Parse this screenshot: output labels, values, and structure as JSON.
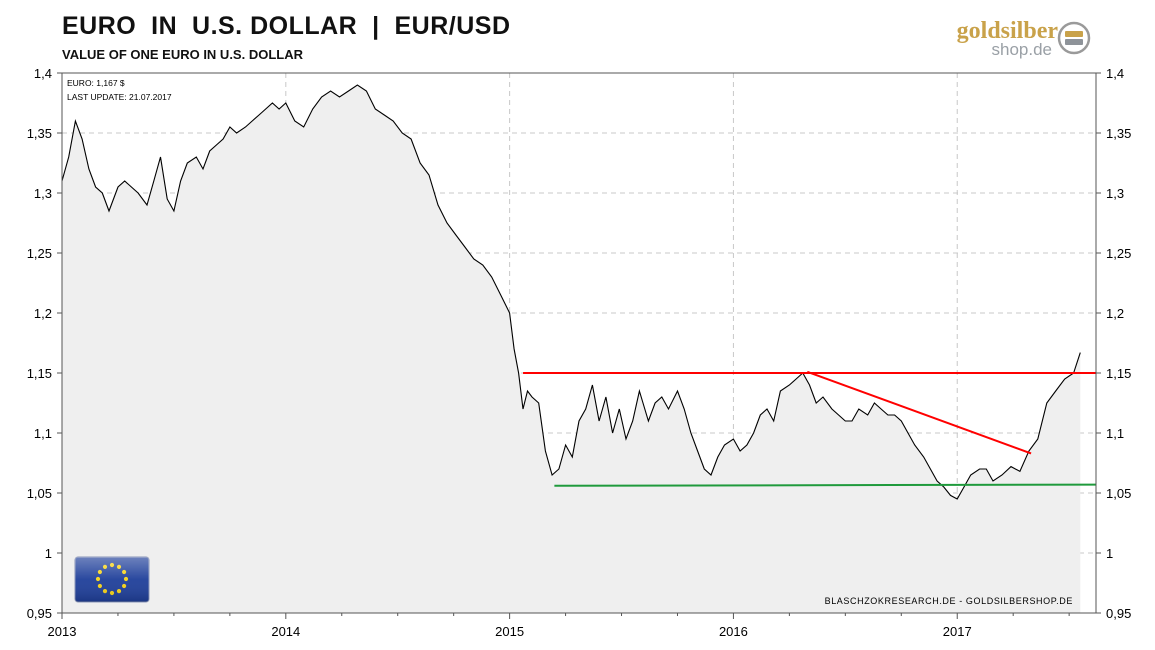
{
  "header": {
    "title": "EURO  IN  U.S. DOLLAR  |  EUR/USD",
    "subtitle": "VALUE OF ONE EURO IN U.S. DOLLAR"
  },
  "brand": {
    "name_gold": "goldsilber",
    "name_shop": "shop.de",
    "logo_icon": "gold-silver-bars-icon"
  },
  "info": {
    "price_label": "EURO: 1,167  $",
    "update_label": "LAST UPDATE: 21.07.2017"
  },
  "footer_credit": "BLASCHZOKRESEARCH.DE  -  GOLDSILBERSHOP.DE",
  "flag": {
    "icon": "eu-flag-icon",
    "blue": "#1f3f9a",
    "star": "#f7d417"
  },
  "colors": {
    "line": "#000000",
    "fill": "#efefef",
    "resistance": "#ff0000",
    "support": "#1f9a3c",
    "grid": "#c8c8c8"
  },
  "chart_data": {
    "type": "line",
    "title": "EURO  IN  U.S. DOLLAR  |  EUR/USD",
    "subtitle": "VALUE OF ONE EURO IN U.S. DOLLAR",
    "x_ticks": [
      "2013",
      "2014",
      "2015",
      "2016",
      "2017"
    ],
    "y_ticks": [
      "1,4",
      "1,35",
      "1,3",
      "1,25",
      "1,2",
      "1,15",
      "1,1",
      "1,05",
      "1",
      "0,95"
    ],
    "ylim": [
      0.95,
      1.4
    ],
    "xlim": [
      2013.0,
      2017.62
    ],
    "grid": true,
    "series": [
      {
        "x": [
          2013.0,
          2013.03,
          2013.06,
          2013.09,
          2013.12,
          2013.15,
          2013.18,
          2013.21,
          2013.25,
          2013.28,
          2013.31,
          2013.34,
          2013.38,
          2013.41,
          2013.44,
          2013.47,
          2013.5,
          2013.53,
          2013.56,
          2013.6,
          2013.63,
          2013.66,
          2013.69,
          2013.72,
          2013.75,
          2013.78,
          2013.82,
          2013.85,
          2013.88,
          2013.91,
          2013.94,
          2013.97,
          2014.0,
          2014.04,
          2014.08,
          2014.12,
          2014.16,
          2014.2,
          2014.24,
          2014.28,
          2014.32,
          2014.36,
          2014.4,
          2014.44,
          2014.48,
          2014.52,
          2014.56,
          2014.6,
          2014.64,
          2014.68,
          2014.72,
          2014.76,
          2014.8,
          2014.84,
          2014.88,
          2014.92,
          2014.96,
          2015.0,
          2015.02,
          2015.04,
          2015.06,
          2015.08,
          2015.1,
          2015.13,
          2015.16,
          2015.19,
          2015.22,
          2015.25,
          2015.28,
          2015.31,
          2015.34,
          2015.37,
          2015.4,
          2015.43,
          2015.46,
          2015.49,
          2015.52,
          2015.55,
          2015.58,
          2015.62,
          2015.65,
          2015.68,
          2015.71,
          2015.75,
          2015.78,
          2015.81,
          2015.84,
          2015.87,
          2015.9,
          2015.93,
          2015.96,
          2016.0,
          2016.03,
          2016.06,
          2016.09,
          2016.12,
          2016.15,
          2016.18,
          2016.21,
          2016.25,
          2016.28,
          2016.31,
          2016.34,
          2016.37,
          2016.4,
          2016.44,
          2016.47,
          2016.5,
          2016.53,
          2016.56,
          2016.6,
          2016.63,
          2016.66,
          2016.69,
          2016.72,
          2016.75,
          2016.78,
          2016.81,
          2016.85,
          2016.88,
          2016.91,
          2016.94,
          2016.97,
          2017.0,
          2017.03,
          2017.06,
          2017.1,
          2017.13,
          2017.16,
          2017.2,
          2017.24,
          2017.28,
          2017.32,
          2017.36,
          2017.4,
          2017.44,
          2017.48,
          2017.52,
          2017.55
        ],
        "y": [
          1.31,
          1.33,
          1.36,
          1.345,
          1.32,
          1.305,
          1.3,
          1.285,
          1.305,
          1.31,
          1.305,
          1.3,
          1.29,
          1.31,
          1.33,
          1.295,
          1.285,
          1.31,
          1.325,
          1.33,
          1.32,
          1.335,
          1.34,
          1.345,
          1.355,
          1.35,
          1.355,
          1.36,
          1.365,
          1.37,
          1.375,
          1.37,
          1.375,
          1.36,
          1.355,
          1.37,
          1.38,
          1.385,
          1.38,
          1.385,
          1.39,
          1.385,
          1.37,
          1.365,
          1.36,
          1.35,
          1.345,
          1.325,
          1.315,
          1.29,
          1.275,
          1.265,
          1.255,
          1.245,
          1.24,
          1.23,
          1.215,
          1.2,
          1.17,
          1.15,
          1.12,
          1.135,
          1.13,
          1.125,
          1.085,
          1.065,
          1.07,
          1.09,
          1.08,
          1.11,
          1.12,
          1.14,
          1.11,
          1.13,
          1.1,
          1.12,
          1.095,
          1.11,
          1.135,
          1.11,
          1.125,
          1.13,
          1.12,
          1.135,
          1.12,
          1.1,
          1.085,
          1.07,
          1.065,
          1.08,
          1.09,
          1.095,
          1.085,
          1.09,
          1.1,
          1.115,
          1.12,
          1.11,
          1.135,
          1.14,
          1.145,
          1.15,
          1.14,
          1.125,
          1.13,
          1.12,
          1.115,
          1.11,
          1.11,
          1.12,
          1.115,
          1.125,
          1.12,
          1.115,
          1.115,
          1.11,
          1.1,
          1.09,
          1.08,
          1.07,
          1.06,
          1.055,
          1.048,
          1.045,
          1.055,
          1.065,
          1.07,
          1.07,
          1.06,
          1.065,
          1.072,
          1.068,
          1.085,
          1.095,
          1.125,
          1.135,
          1.145,
          1.15,
          1.167
        ]
      }
    ],
    "resistance_line": {
      "x": [
        2015.06,
        2017.62
      ],
      "y": [
        1.15,
        1.15
      ]
    },
    "support_line": {
      "x": [
        2015.2,
        2017.62
      ],
      "y": [
        1.056,
        1.057
      ]
    },
    "downtrend_line": {
      "x": [
        2016.33,
        2017.33
      ],
      "y": [
        1.151,
        1.083
      ]
    }
  }
}
